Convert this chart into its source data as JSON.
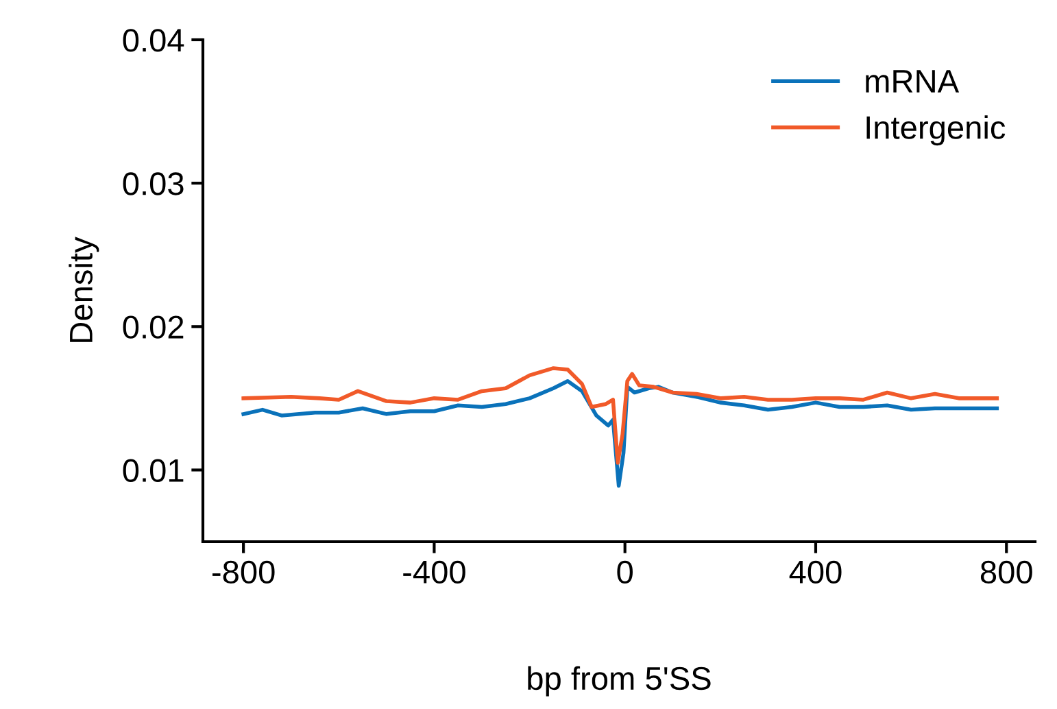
{
  "chart_data": {
    "type": "line",
    "xlabel": "bp from 5'SS",
    "ylabel": "Density",
    "xlim": [
      -885,
      860
    ],
    "ylim": [
      0.005,
      0.04
    ],
    "xticks": [
      {
        "value": -800,
        "label": "-800"
      },
      {
        "value": -400,
        "label": "-400"
      },
      0,
      400,
      800
    ],
    "yticks": [
      0.01,
      0.02,
      0.03,
      0.04
    ],
    "grid": false,
    "legend": "top right",
    "marker": "none",
    "line_style": "solid",
    "series": [
      {
        "name": "mRNA",
        "color": "#0a72ba",
        "x": [
          -800,
          -760,
          -720,
          -650,
          -600,
          -550,
          -500,
          -450,
          -400,
          -350,
          -300,
          -250,
          -200,
          -150,
          -120,
          -90,
          -60,
          -35,
          -25,
          -13,
          -3,
          5,
          20,
          50,
          70,
          100,
          150,
          200,
          250,
          300,
          350,
          400,
          450,
          500,
          550,
          600,
          650,
          700,
          750,
          780
        ],
        "values": [
          0.0139,
          0.0142,
          0.0138,
          0.014,
          0.014,
          0.0143,
          0.0139,
          0.0141,
          0.0141,
          0.0145,
          0.0144,
          0.0146,
          0.015,
          0.0157,
          0.0162,
          0.0155,
          0.0138,
          0.0131,
          0.0135,
          0.0089,
          0.0112,
          0.0158,
          0.0154,
          0.0157,
          0.0158,
          0.0154,
          0.0151,
          0.0147,
          0.0145,
          0.0142,
          0.0144,
          0.0147,
          0.0144,
          0.0144,
          0.0145,
          0.0142,
          0.0143,
          0.0143,
          0.0143,
          0.0143
        ]
      },
      {
        "name": "Intergenic",
        "color": "#f15a29",
        "x": [
          -800,
          -700,
          -640,
          -600,
          -560,
          -500,
          -450,
          -400,
          -350,
          -300,
          -250,
          -200,
          -150,
          -120,
          -90,
          -70,
          -40,
          -25,
          -15,
          -5,
          5,
          15,
          30,
          60,
          100,
          150,
          200,
          250,
          300,
          350,
          400,
          450,
          500,
          550,
          600,
          650,
          700,
          750,
          780
        ],
        "values": [
          0.015,
          0.0151,
          0.015,
          0.0149,
          0.0155,
          0.0148,
          0.0147,
          0.015,
          0.0149,
          0.0155,
          0.0157,
          0.0166,
          0.0171,
          0.017,
          0.016,
          0.0144,
          0.0146,
          0.0149,
          0.0105,
          0.0125,
          0.0162,
          0.0167,
          0.0159,
          0.0158,
          0.0154,
          0.0153,
          0.015,
          0.0151,
          0.0149,
          0.0149,
          0.015,
          0.015,
          0.0149,
          0.0154,
          0.015,
          0.0153,
          0.015,
          0.015,
          0.015
        ]
      }
    ]
  }
}
